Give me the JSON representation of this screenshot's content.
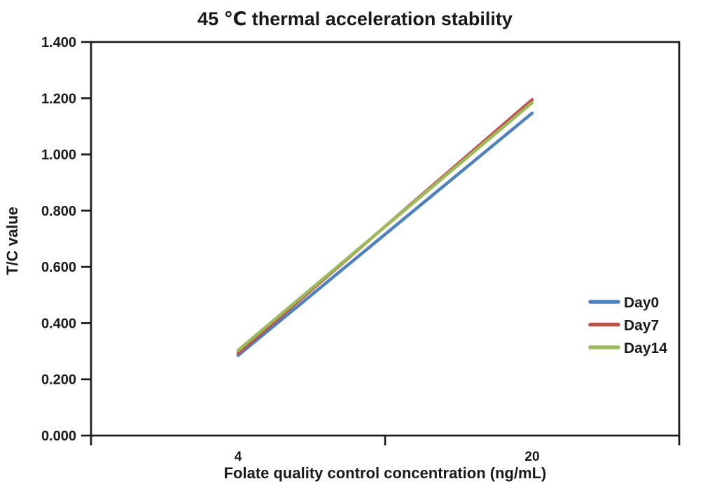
{
  "chart_data": {
    "type": "line",
    "title": "45 ℃ thermal acceleration stability",
    "xlabel": "Folate quality control concentration (ng/mL)",
    "ylabel": "T/C value",
    "categories": [
      "4",
      "20"
    ],
    "series": [
      {
        "name": "Day0",
        "color": "#4F81BD",
        "values": [
          0.285,
          1.147
        ]
      },
      {
        "name": "Day7",
        "color": "#C0504D",
        "values": [
          0.293,
          1.195
        ]
      },
      {
        "name": "Day14",
        "color": "#9BBB59",
        "values": [
          0.303,
          1.184
        ]
      }
    ],
    "ylim": [
      0.0,
      1.4
    ],
    "ytick_labels": [
      "0.000",
      "0.200",
      "0.400",
      "0.600",
      "0.800",
      "1.000",
      "1.200",
      "1.400"
    ],
    "grid": false,
    "legend_position": "inside-right",
    "axis_color": "#1a1a1a",
    "background_color": "#ffffff"
  }
}
